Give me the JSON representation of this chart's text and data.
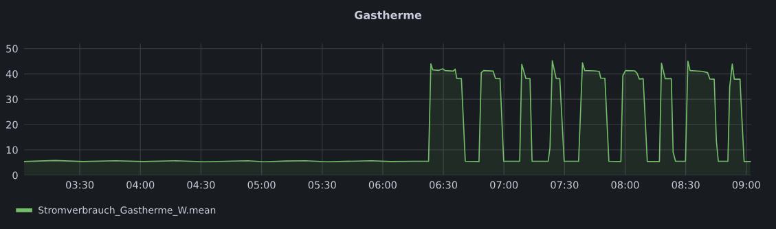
{
  "chart_data": {
    "type": "area",
    "title": "Gastherme",
    "xlim": [
      3.04,
      9.04
    ],
    "xticks": [
      {
        "value": 3.5,
        "label": "03:30"
      },
      {
        "value": 4,
        "label": "04:00"
      },
      {
        "value": 4.5,
        "label": "04:30"
      },
      {
        "value": 5,
        "label": "05:00"
      },
      {
        "value": 5.5,
        "label": "05:30"
      },
      {
        "value": 6,
        "label": "06:00"
      },
      {
        "value": 6.5,
        "label": "06:30"
      },
      {
        "value": 7,
        "label": "07:00"
      },
      {
        "value": 7.5,
        "label": "07:30"
      },
      {
        "value": 8,
        "label": "08:00"
      },
      {
        "value": 8.5,
        "label": "08:30"
      },
      {
        "value": 9,
        "label": "09:00"
      }
    ],
    "ylim": [
      0,
      52
    ],
    "yticks": [
      0,
      10,
      20,
      30,
      40,
      50
    ],
    "grid": true,
    "legend": "bottom left",
    "marker": "none",
    "line_style": "solid",
    "series": [
      {
        "name": "Stromverbrauch_Gastherme_W.mean",
        "color": "#73bf69",
        "x": [
          3.04,
          3.298,
          3.525,
          3.797,
          4.024,
          4.296,
          4.523,
          4.885,
          5.022,
          5.203,
          5.362,
          5.543,
          5.906,
          6.065,
          6.246,
          6.378,
          6.397,
          6.412,
          6.463,
          6.496,
          6.514,
          6.582,
          6.597,
          6.611,
          6.649,
          6.681,
          6.794,
          6.813,
          6.832,
          6.911,
          6.93,
          6.968,
          6.998,
          7.13,
          7.147,
          7.181,
          7.215,
          7.232,
          7.365,
          7.38,
          7.399,
          7.431,
          7.461,
          7.497,
          7.616,
          7.648,
          7.667,
          7.739,
          7.786,
          7.799,
          7.833,
          7.866,
          7.965,
          7.981,
          8.003,
          8.079,
          8.098,
          8.117,
          8.149,
          8.183,
          8.283,
          8.3,
          8.331,
          8.381,
          8.396,
          8.416,
          8.498,
          8.518,
          8.536,
          8.637,
          8.68,
          8.699,
          8.735,
          8.753,
          8.769,
          8.848,
          8.863,
          8.884,
          8.901,
          8.948,
          8.961,
          8.982,
          9.033
        ],
        "values": [
          5.4,
          5.8,
          5.4,
          5.7,
          5.4,
          5.7,
          5.3,
          5.7,
          5.3,
          5.6,
          5.7,
          5.3,
          5.7,
          5.4,
          5.5,
          5.5,
          44.0,
          41.6,
          41.4,
          42.0,
          41.3,
          41.1,
          41.9,
          38.2,
          38.1,
          5.5,
          5.4,
          40.5,
          41.3,
          41.1,
          38.2,
          38.1,
          5.5,
          5.5,
          43.8,
          38.2,
          38.1,
          5.5,
          5.5,
          10.9,
          45.2,
          38.2,
          38.1,
          5.5,
          5.5,
          44.4,
          41.3,
          41.2,
          41.0,
          38.3,
          38.3,
          5.5,
          5.4,
          39.3,
          41.3,
          41.2,
          40.3,
          38.0,
          38.1,
          5.4,
          5.4,
          44.2,
          38.1,
          38.1,
          9.1,
          5.5,
          5.5,
          45.0,
          41.3,
          41.0,
          40.5,
          38.0,
          37.9,
          13.5,
          5.5,
          5.5,
          34.9,
          43.9,
          37.9,
          37.9,
          24.8,
          5.4,
          5.4
        ]
      }
    ]
  }
}
